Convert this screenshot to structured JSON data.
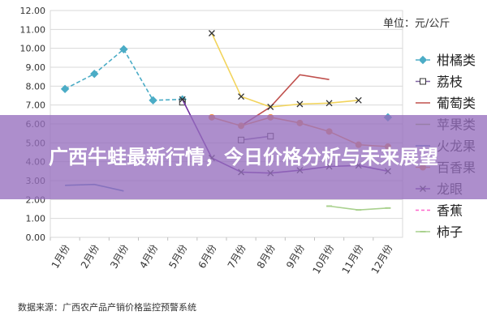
{
  "banner": {
    "title": "广西牛蛙最新行情，今日价格分析与未来展望"
  },
  "chart_data": {
    "type": "line",
    "unit_label": "单位：元/公斤",
    "source_note": "数据来源：广西农产品产销价格监控预警系统",
    "categories": [
      "1月份",
      "2月份",
      "3月份",
      "4月份",
      "5月份",
      "6月份",
      "7月份",
      "8月份",
      "9月份",
      "10月份",
      "11月份",
      "12月份"
    ],
    "y_ticks": [
      "0.00",
      "1.00",
      "2.00",
      "3.00",
      "4.00",
      "5.00",
      "6.00",
      "7.00",
      "8.00",
      "9.00",
      "10.00",
      "11.00",
      "12.00"
    ],
    "ylim": [
      0,
      12
    ],
    "grid": true,
    "legend_position": "right",
    "series": [
      {
        "name": "柑橘类",
        "color": "#4BACC6",
        "marker": "diamond",
        "dashed": true,
        "values": [
          7.85,
          8.65,
          9.95,
          7.25,
          7.3,
          null,
          null,
          null,
          null,
          null,
          null,
          6.35
        ]
      },
      {
        "name": "荔枝",
        "color": "#8064A2",
        "marker": "square",
        "dashed": false,
        "values": [
          null,
          null,
          null,
          null,
          7.15,
          null,
          5.15,
          5.35,
          null,
          null,
          null,
          null
        ]
      },
      {
        "name": "葡萄类",
        "color": "#C0504D",
        "marker": "none",
        "dashed": false,
        "values": [
          null,
          null,
          null,
          null,
          null,
          null,
          5.9,
          6.9,
          8.6,
          8.35,
          null,
          null
        ]
      },
      {
        "name": "苹果类",
        "color": "#9BBB59",
        "marker": "none",
        "dashed": false,
        "values": [
          null,
          null,
          null,
          null,
          null,
          null,
          null,
          null,
          null,
          null,
          null,
          null
        ]
      },
      {
        "name": "火龙果",
        "color": "#4F81BD",
        "marker": "none",
        "dashed": false,
        "values": [
          2.75,
          2.8,
          2.45,
          null,
          null,
          null,
          null,
          null,
          null,
          null,
          null,
          null
        ]
      },
      {
        "name": "百香果",
        "color": "#F79646",
        "marker": "circle",
        "dashed": false,
        "values": [
          null,
          null,
          null,
          null,
          null,
          6.35,
          5.9,
          6.35,
          6.05,
          5.6,
          4.9,
          4.8
        ]
      },
      {
        "name": "龙眼",
        "color": "#7030A0",
        "marker": "cross",
        "dashed": false,
        "values": [
          null,
          null,
          null,
          null,
          7.3,
          4.2,
          3.45,
          3.4,
          3.55,
          3.75,
          3.8,
          3.5
        ]
      },
      {
        "name": "香蕉",
        "color": "#FF66CC",
        "marker": "none",
        "dashed": true,
        "values": [
          null,
          null,
          null,
          null,
          null,
          null,
          null,
          null,
          null,
          null,
          null,
          null
        ]
      },
      {
        "name": "柿子",
        "color": "#A9D18E",
        "marker": "dash",
        "dashed": false,
        "values": [
          null,
          null,
          null,
          null,
          null,
          null,
          null,
          null,
          null,
          1.65,
          1.45,
          1.55
        ]
      },
      {
        "name": "",
        "color": "#F2D45C",
        "marker": "cross",
        "dashed": false,
        "values": [
          null,
          null,
          null,
          null,
          null,
          10.8,
          7.45,
          6.9,
          7.05,
          7.1,
          7.25,
          null
        ]
      }
    ]
  }
}
